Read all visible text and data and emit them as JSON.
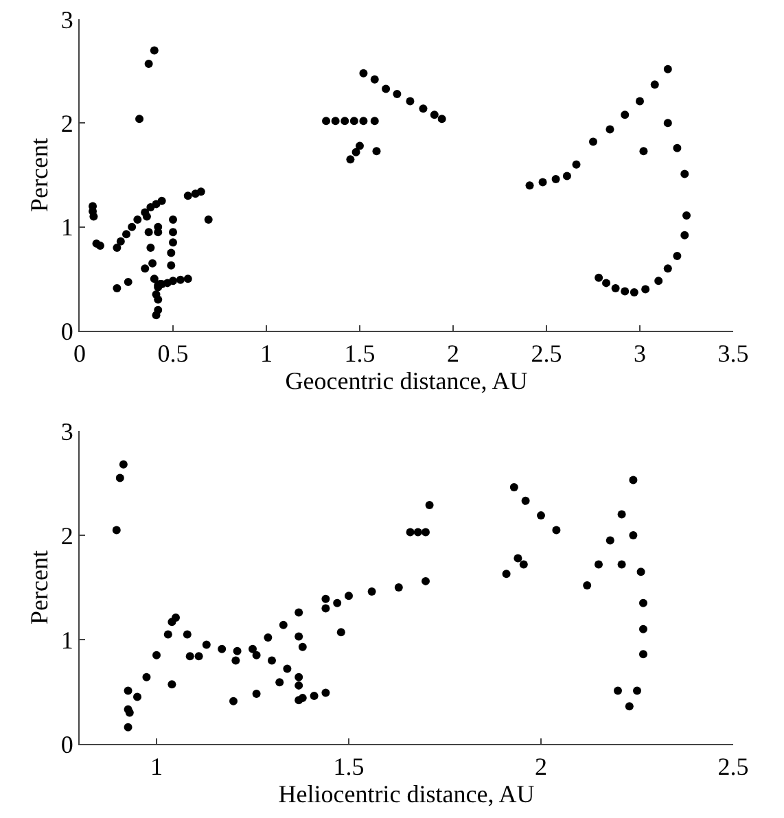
{
  "chart_data": [
    {
      "type": "scatter",
      "xlabel": "Geocentric distance, AU",
      "ylabel": "Percent",
      "marker": "circle",
      "xlim": [
        0,
        3.5
      ],
      "xticks": [
        0,
        0.5,
        1,
        1.5,
        2,
        2.5,
        3,
        3.5
      ],
      "ylim": [
        0,
        3
      ],
      "yticks": [
        0,
        1,
        2,
        3
      ],
      "series": [
        {
          "color": "#000000",
          "x": [
            0.07,
            0.07,
            0.075,
            0.09,
            0.11,
            0.2,
            0.22,
            0.25,
            0.28,
            0.31,
            0.35,
            0.38,
            0.41,
            0.44,
            0.36,
            0.37,
            0.38,
            0.39,
            0.4,
            0.41,
            0.42,
            0.41,
            0.42,
            0.43,
            0.42,
            0.42,
            0.5,
            0.5,
            0.5,
            0.49,
            0.49,
            0.42,
            0.42,
            0.44,
            0.47,
            0.5,
            0.54,
            0.58,
            0.2,
            0.26,
            0.35,
            0.58,
            0.62,
            0.65,
            0.69,
            0.32,
            0.37,
            0.4,
            1.32,
            1.37,
            1.42,
            1.47,
            1.52,
            1.58,
            1.45,
            1.48,
            1.5,
            1.59,
            1.52,
            1.58,
            1.64,
            1.7,
            1.77,
            1.84,
            1.9,
            1.94,
            2.41,
            2.48,
            2.55,
            2.61,
            2.66,
            2.75,
            2.84,
            2.92,
            3.0,
            3.08,
            3.15,
            3.02,
            3.15,
            3.2,
            3.24,
            3.25,
            3.24,
            3.2,
            3.15,
            3.1,
            3.03,
            2.97,
            2.92,
            2.87,
            2.82,
            2.78
          ],
          "values": [
            1.2,
            1.15,
            1.1,
            0.84,
            0.82,
            0.8,
            0.86,
            0.93,
            1.0,
            1.07,
            1.14,
            1.19,
            1.22,
            1.25,
            1.1,
            0.95,
            0.8,
            0.65,
            0.5,
            0.35,
            0.2,
            0.15,
            0.3,
            0.45,
            0.95,
            1.0,
            1.07,
            0.95,
            0.85,
            0.75,
            0.63,
            0.42,
            0.44,
            0.45,
            0.46,
            0.48,
            0.49,
            0.5,
            0.41,
            0.47,
            0.6,
            1.3,
            1.32,
            1.34,
            1.07,
            2.04,
            2.57,
            2.7,
            2.02,
            2.02,
            2.02,
            2.02,
            2.02,
            2.02,
            1.65,
            1.72,
            1.78,
            1.73,
            2.48,
            2.42,
            2.33,
            2.28,
            2.21,
            2.14,
            2.08,
            2.04,
            1.4,
            1.43,
            1.46,
            1.49,
            1.6,
            1.82,
            1.94,
            2.08,
            2.21,
            2.37,
            2.52,
            1.73,
            2.0,
            1.76,
            1.51,
            1.11,
            0.92,
            0.72,
            0.6,
            0.48,
            0.4,
            0.37,
            0.38,
            0.41,
            0.46,
            0.51
          ]
        }
      ]
    },
    {
      "type": "scatter",
      "xlabel": "Heliocentric distance, AU",
      "ylabel": "Percent",
      "marker": "circle",
      "xlim": [
        0.8,
        2.5
      ],
      "xticks": [
        1,
        1.5,
        2,
        2.5
      ],
      "ylim": [
        0,
        3
      ],
      "yticks": [
        0,
        1,
        2,
        3
      ],
      "series": [
        {
          "color": "#000000",
          "x": [
            0.896,
            0.905,
            0.914,
            0.926,
            0.926,
            0.926,
            0.93,
            0.95,
            0.974,
            1.0,
            1.03,
            1.05,
            1.04,
            1.08,
            1.13,
            1.17,
            1.21,
            1.26,
            1.3,
            1.34,
            1.37,
            1.206,
            1.25,
            1.29,
            1.33,
            1.37,
            1.37,
            1.37,
            1.38,
            1.41,
            1.44,
            1.04,
            1.2,
            1.26,
            1.32,
            1.48,
            1.087,
            1.11,
            1.37,
            1.38,
            1.44,
            1.5,
            1.56,
            1.63,
            1.7,
            1.44,
            1.47,
            1.66,
            1.68,
            1.7,
            1.71,
            1.93,
            1.96,
            2.0,
            2.04,
            1.91,
            1.94,
            1.955,
            2.12,
            2.15,
            2.18,
            2.21,
            2.24,
            2.21,
            2.24,
            2.26,
            2.266,
            2.266,
            2.266,
            2.25,
            2.23,
            2.2
          ],
          "values": [
            2.05,
            2.55,
            2.68,
            0.51,
            0.33,
            0.16,
            0.3,
            0.45,
            0.64,
            0.85,
            1.05,
            1.21,
            1.17,
            1.05,
            0.95,
            0.91,
            0.89,
            0.85,
            0.8,
            0.72,
            0.64,
            0.8,
            0.91,
            1.02,
            1.14,
            1.26,
            0.56,
            0.42,
            0.44,
            0.46,
            0.49,
            0.57,
            0.41,
            0.48,
            0.59,
            1.07,
            0.84,
            0.84,
            1.03,
            0.93,
            1.39,
            1.42,
            1.46,
            1.5,
            1.56,
            1.3,
            1.35,
            2.03,
            2.03,
            2.03,
            2.29,
            2.46,
            2.33,
            2.19,
            2.05,
            1.63,
            1.78,
            1.72,
            1.52,
            1.72,
            1.95,
            2.2,
            2.53,
            1.72,
            2.0,
            1.65,
            1.35,
            1.1,
            0.86,
            0.51,
            0.36,
            0.51
          ]
        }
      ]
    }
  ]
}
